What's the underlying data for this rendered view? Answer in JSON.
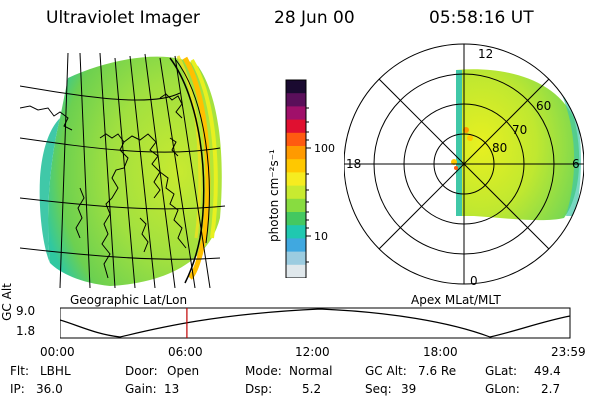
{
  "header": {
    "instrument": "Ultraviolet Imager",
    "date": "28 Jun 00",
    "time": "05:58:16 UT"
  },
  "colorbar": {
    "label": "photon cm⁻²s⁻¹",
    "ticks": [
      "100",
      "10"
    ],
    "colors": [
      "#1a0a30",
      "#5a0f5a",
      "#a0106a",
      "#e01030",
      "#ff5a10",
      "#ff9a00",
      "#ffc800",
      "#f6ec20",
      "#c8ea30",
      "#88dc40",
      "#44c860",
      "#20c8b0",
      "#40a8e0",
      "#9ccce0",
      "#e0e8ec"
    ]
  },
  "panels": {
    "left_caption": "Geographic Lat/Lon",
    "right_caption": "Apex MLat/MLT",
    "polar_labels": {
      "mlt_top": "12",
      "mlt_left": "18",
      "mlt_right": "6",
      "mlt_bottom": "0",
      "lat_60": "60",
      "lat_70": "70",
      "lat_80": "80"
    }
  },
  "timeline": {
    "axis_title": "GC Alt",
    "y_ticks": [
      "9.0",
      "1.8"
    ],
    "x_ticks": [
      "00:00",
      "06:00",
      "12:00",
      "18:00",
      "23:59"
    ],
    "marker_hour": 5.97
  },
  "status": {
    "flt_label": "Flt:",
    "flt_value": "LBHL",
    "ip_label": "IP:",
    "ip_value": "36.0",
    "door_label": "Door:",
    "door_value": "Open",
    "gain_label": "Gain:",
    "gain_value": "13",
    "mode_label": "Mode:",
    "mode_value": "Normal",
    "dsp_label": "Dsp:",
    "dsp_value": "5.2",
    "gcalt_label": "GC Alt:",
    "gcalt_value": "7.6 Re",
    "seq_label": "Seq:",
    "seq_value": "39",
    "glat_label": "GLat:",
    "glat_value": "49.4",
    "glon_label": "GLon:",
    "glon_value": "2.7"
  }
}
